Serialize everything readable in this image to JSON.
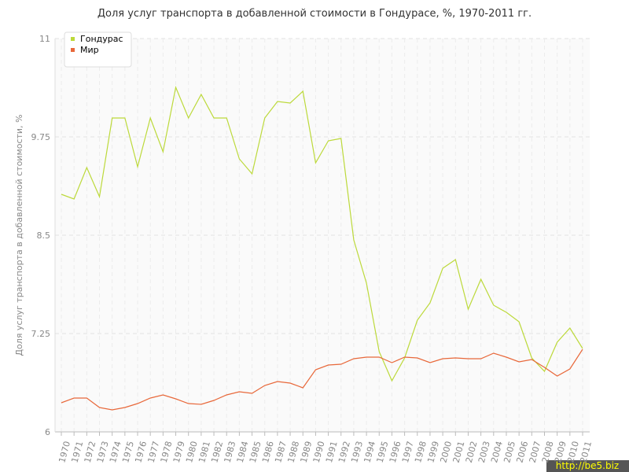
{
  "chart_data": {
    "type": "line",
    "title": "Доля услуг транспорта в добавленной стоимости в Гондурасе, %, 1970-2011 гг.",
    "y_label": "Доля услуг транспорта в добавленной стоимости, %",
    "categories": [
      "1970",
      "1971",
      "1972",
      "1973",
      "1974",
      "1975",
      "1976",
      "1977",
      "1978",
      "1979",
      "1980",
      "1981",
      "1982",
      "1983",
      "1984",
      "1985",
      "1986",
      "1987",
      "1988",
      "1989",
      "1990",
      "1991",
      "1992",
      "1993",
      "1994",
      "1995",
      "1996",
      "1997",
      "1998",
      "1999",
      "2000",
      "2001",
      "2002",
      "2003",
      "2004",
      "2005",
      "2006",
      "2007",
      "2008",
      "2009",
      "2010",
      "2011"
    ],
    "series": [
      {
        "name": "Гондурас",
        "color": "#bcd93a",
        "values": [
          9.02,
          8.96,
          9.36,
          8.99,
          9.99,
          9.99,
          9.37,
          9.99,
          9.56,
          10.38,
          9.99,
          10.29,
          9.99,
          9.99,
          9.47,
          9.28,
          9.99,
          10.2,
          10.18,
          10.33,
          9.42,
          9.7,
          9.73,
          8.44,
          7.89,
          7.02,
          6.65,
          6.94,
          7.42,
          7.64,
          8.08,
          8.19,
          7.56,
          7.94,
          7.61,
          7.52,
          7.4,
          6.94,
          6.77,
          7.14,
          7.32,
          7.06
        ]
      },
      {
        "name": "Мир",
        "color": "#e8683a",
        "values": [
          6.37,
          6.43,
          6.43,
          6.31,
          6.28,
          6.31,
          6.36,
          6.43,
          6.47,
          6.42,
          6.36,
          6.35,
          6.4,
          6.47,
          6.51,
          6.49,
          6.59,
          6.64,
          6.62,
          6.56,
          6.79,
          6.85,
          6.86,
          6.93,
          6.95,
          6.95,
          6.88,
          6.95,
          6.94,
          6.88,
          6.93,
          6.94,
          6.93,
          6.93,
          7.0,
          6.95,
          6.89,
          6.92,
          6.82,
          6.71,
          6.8,
          7.05
        ]
      }
    ],
    "ylim": [
      6,
      11
    ],
    "yticks": [
      6,
      7.25,
      8.5,
      9.75,
      11
    ],
    "grid": true,
    "legend": "top-left",
    "watermark": "http://be5.biz"
  }
}
